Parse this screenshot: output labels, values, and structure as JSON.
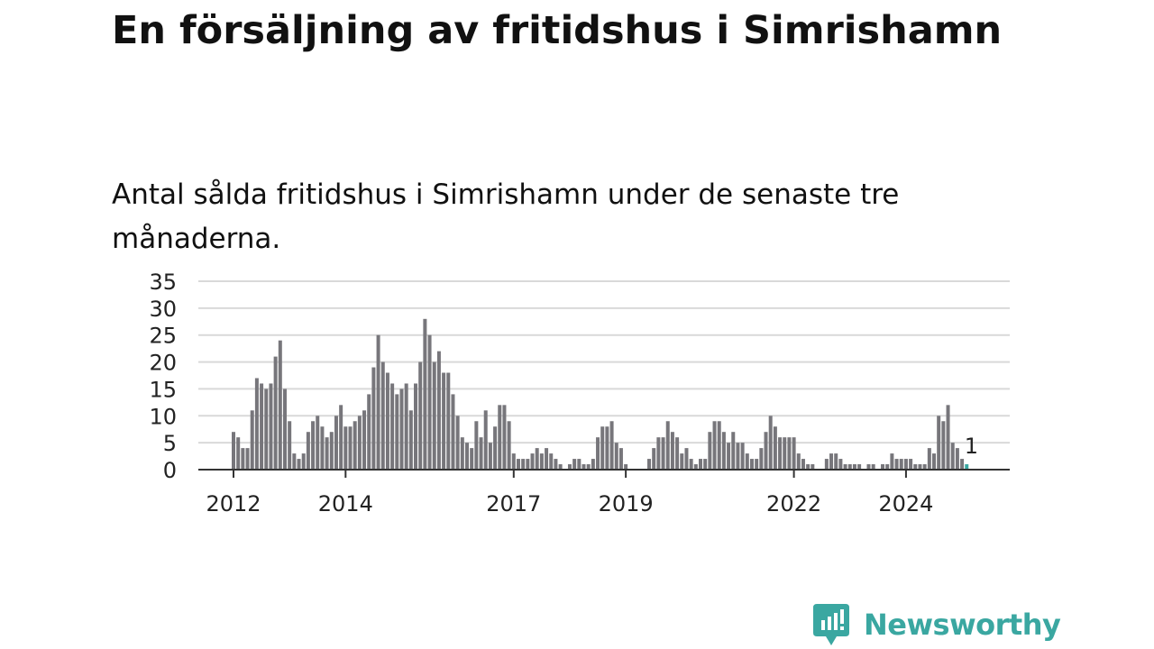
{
  "header": {
    "title": "En försäljning av fritidshus i Simrishamn",
    "subtitle": "Antal sålda fritidshus i Simrishamn under de senaste tre månaderna."
  },
  "chart_data": {
    "type": "bar",
    "title": "",
    "xlabel": "",
    "ylabel": "",
    "ylim": [
      0,
      35
    ],
    "yticks": [
      0,
      5,
      10,
      15,
      20,
      25,
      30,
      35
    ],
    "grid": true,
    "bar_color": "#77767b",
    "highlight_color": "#3aa7a1",
    "x_tick_labels": [
      {
        "label": "2012",
        "date": "2012-01"
      },
      {
        "label": "2014",
        "date": "2014-01"
      },
      {
        "label": "2017",
        "date": "2017-01"
      },
      {
        "label": "2019",
        "date": "2019-01"
      },
      {
        "label": "2022",
        "date": "2022-01"
      },
      {
        "label": "2024",
        "date": "2024-01"
      }
    ],
    "series": [
      {
        "start": "2012-01",
        "values": [
          7,
          6,
          4,
          4,
          11,
          17,
          16,
          15,
          16,
          21,
          24,
          15,
          9,
          3,
          2,
          3,
          7,
          9,
          10,
          8,
          6,
          7,
          10,
          12,
          8,
          8,
          9,
          10,
          11,
          14,
          19,
          25,
          20,
          18,
          16,
          14,
          15,
          16,
          11,
          16,
          20,
          28,
          25,
          20,
          22,
          18,
          18,
          14,
          10,
          6,
          5,
          4,
          9,
          6,
          11,
          5,
          8,
          12,
          12,
          9,
          3,
          2,
          2,
          2,
          3,
          4,
          3,
          4,
          3,
          2,
          1,
          0,
          1,
          2,
          2,
          1,
          1,
          2,
          6,
          8,
          8,
          9,
          5,
          4,
          1,
          0,
          0,
          0,
          0,
          2,
          4,
          6,
          6,
          9,
          7,
          6,
          3,
          4,
          2,
          1,
          2,
          2,
          7,
          9,
          9,
          7,
          5,
          7,
          5,
          5,
          3,
          2,
          2,
          4,
          7,
          10,
          8,
          6,
          6,
          6,
          6,
          3,
          2,
          1,
          1,
          0,
          0,
          2,
          3,
          3,
          2,
          1,
          1,
          1,
          1,
          0,
          1,
          1,
          0,
          1,
          1,
          3,
          2,
          2,
          2,
          2,
          1,
          1,
          1,
          4,
          3,
          10,
          9,
          12,
          5,
          4,
          2,
          1
        ]
      }
    ],
    "annotations": [
      {
        "text": "1",
        "date": "2025-03",
        "value": 1
      }
    ]
  },
  "brand": {
    "name": "Newsworthy",
    "color": "#3aa7a1",
    "icon": "newsworthy-logo-icon"
  }
}
